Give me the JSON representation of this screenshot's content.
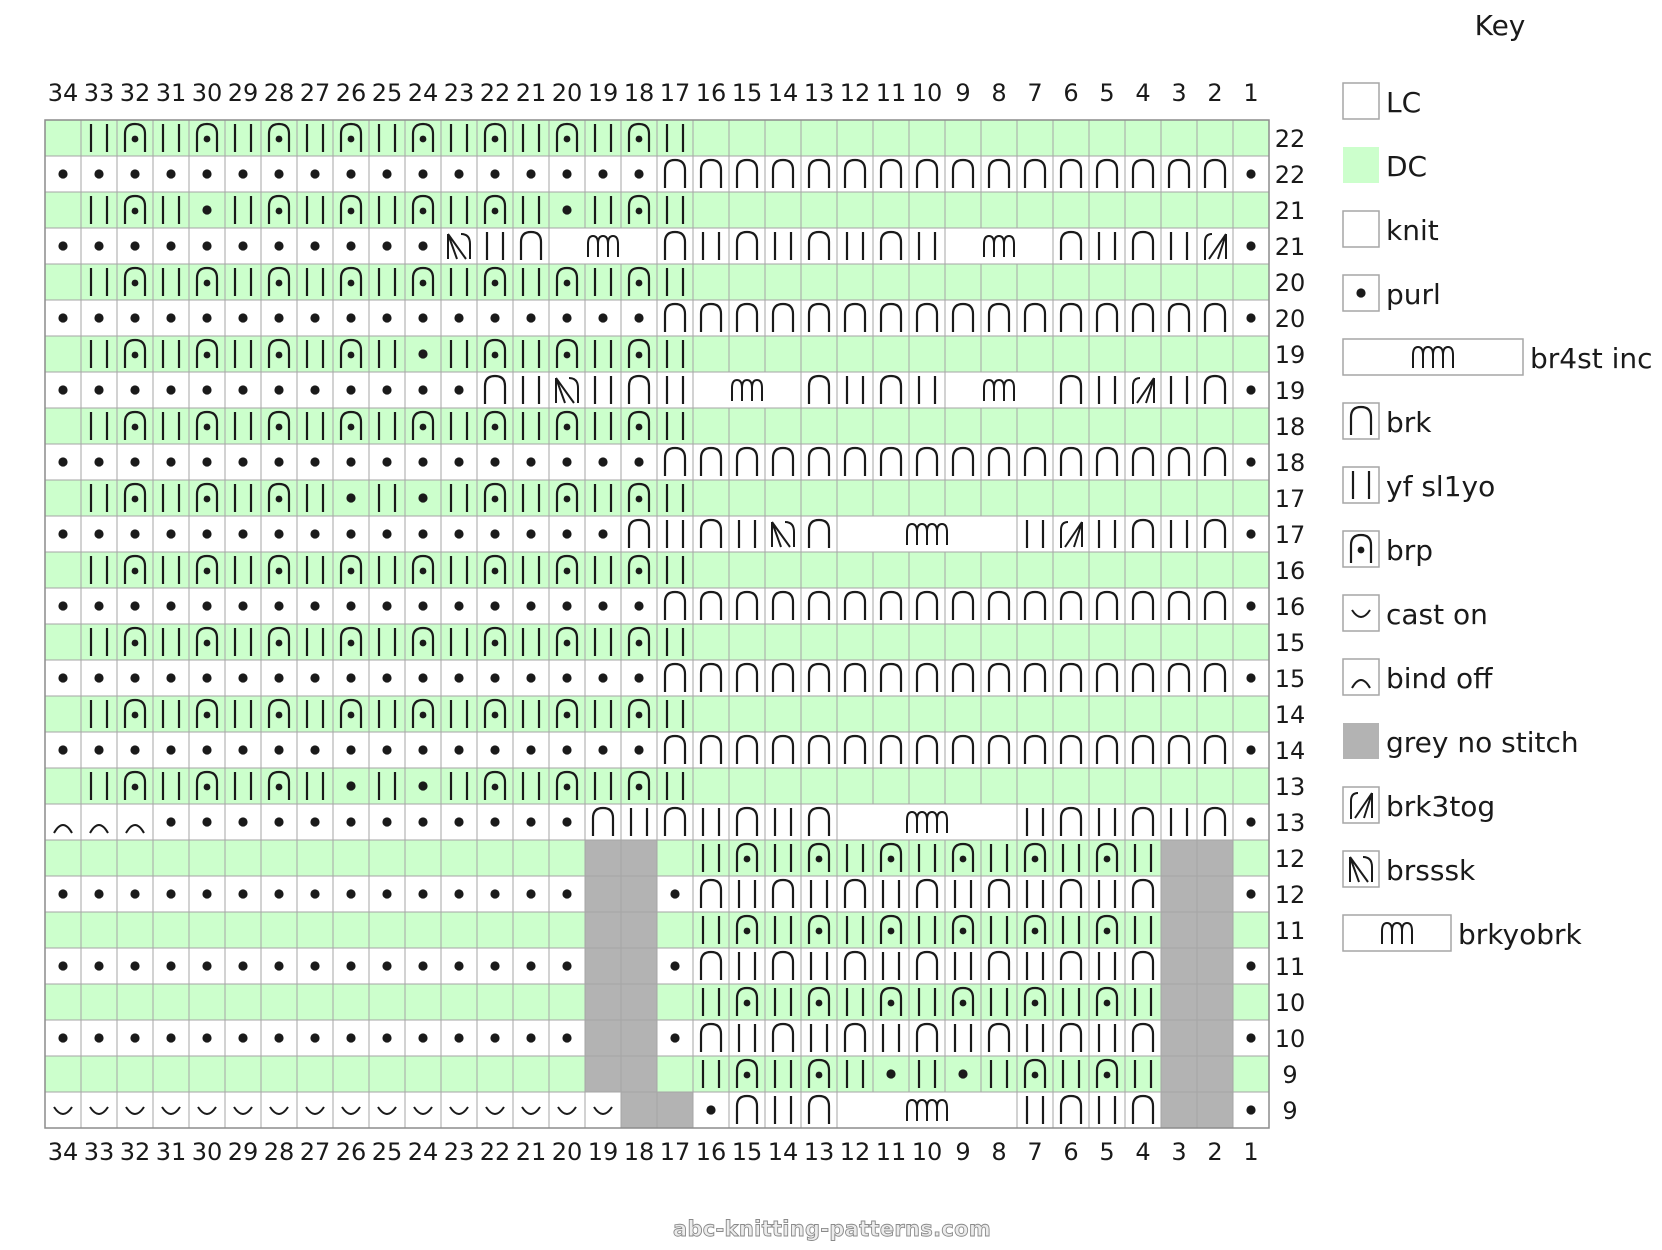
{
  "key_title": "Key",
  "watermark": "abc-knitting-patterns.com",
  "colors": {
    "dc": "#ccffcc",
    "lc": "#ffffff",
    "grey": "#b3b3b3",
    "grid": "#a6a6a6",
    "ink": "#1a1a1a"
  },
  "stitch_numbers": [
    "34",
    "33",
    "32",
    "31",
    "30",
    "29",
    "28",
    "27",
    "26",
    "25",
    "24",
    "23",
    "22",
    "21",
    "20",
    "19",
    "18",
    "17",
    "16",
    "15",
    "14",
    "13",
    "12",
    "11",
    "10",
    "9",
    "8",
    "7",
    "6",
    "5",
    "4",
    "3",
    "2",
    "1"
  ],
  "key": [
    {
      "id": "lc",
      "label": "LC"
    },
    {
      "id": "dc",
      "label": "DC"
    },
    {
      "id": "knit",
      "label": "knit"
    },
    {
      "id": "purl",
      "label": "purl"
    },
    {
      "id": "br4st",
      "label": "br4st inc"
    },
    {
      "id": "brk",
      "label": "brk"
    },
    {
      "id": "yf",
      "label": "yf sl1yo"
    },
    {
      "id": "brp",
      "label": "brp"
    },
    {
      "id": "caston",
      "label": "cast on"
    },
    {
      "id": "bindoff",
      "label": "bind off"
    },
    {
      "id": "grey",
      "label": "grey no stitch"
    },
    {
      "id": "brk3tog",
      "label": "brk3tog"
    },
    {
      "id": "brsssk",
      "label": "brsssk"
    },
    {
      "id": "brkyobrk",
      "label": "brkyobrk"
    }
  ],
  "chart_data": {
    "type": "knitting-chart",
    "columns": 34,
    "legend": {
      "C": "LC (white background)",
      "D": "DC (green background)",
      "k": "knit",
      "p": "purl",
      "K": "brk",
      "Y": "yf sl1yo",
      "P": "brp",
      "g": "grey no stitch",
      "u": "cast on",
      "b": "bind off",
      "T": "brk3tog",
      "S": "brsssk",
      "B4": "br4st inc (spans 5 cells)",
      "B2": "brkyobrk (spans 3 cells)"
    },
    "rows": [
      {
        "label": "22",
        "bg": "D",
        "cells": "D*16,Y,P,Y,P,Y,P,Y,P,Y,P,Y,P,Y,P,Y,P,Y,D"
      },
      {
        "label": "22",
        "bg": "C",
        "cells": "p,K*16,p*16,p"
      },
      {
        "label": "21",
        "bg": "D",
        "cells": "D*16,Y,P,Y,p,Y,P,Y,P,Y,P,Y,P,Y,p,Y,P,Y,D"
      },
      {
        "label": "21",
        "bg": "C",
        "cells": "p,T,Y,K,Y,K,B2,Y,K,Y,K,Y,K,Y,K,B2,K,Y,S,p*16"
      },
      {
        "label": "20",
        "bg": "D",
        "cells": "D*16,Y,P,Y,P,Y,P,Y,P,Y,P,Y,P,Y,P,Y,P,Y,D"
      },
      {
        "label": "20",
        "bg": "C",
        "cells": "p,K*16,p*16,p"
      },
      {
        "label": "19",
        "bg": "D",
        "cells": "D*16,Y,P,Y,P,Y,P,Y,p,Y,P,Y,P,Y,P,Y,P,Y,D"
      },
      {
        "label": "19",
        "bg": "C",
        "cells": "p,K,Y,T,Y,K,B2,Y,K,Y,K,B2,Y,K,Y,S,Y,K,p*16"
      },
      {
        "label": "18",
        "bg": "D",
        "cells": "D*16,Y,P,Y,P,Y,P,Y,P,Y,P,Y,P,Y,P,Y,P,Y,D"
      },
      {
        "label": "18",
        "bg": "C",
        "cells": "p,K*16,p*16,p"
      },
      {
        "label": "17",
        "bg": "D",
        "cells": "D*16,Y,P,Y,P,Y,P,Y,p,Y,p,Y,P,Y,P,Y,P,Y,D"
      },
      {
        "label": "17",
        "bg": "C",
        "cells": "p,K,Y,K,Y,T,Y,B4,K,S,Y,K,Y,K,p*16"
      },
      {
        "label": "16",
        "bg": "D",
        "cells": "D*16,Y,P,Y,P,Y,P,Y,P,Y,P,Y,P,Y,P,Y,P,Y,D"
      },
      {
        "label": "16",
        "bg": "C",
        "cells": "p,K*16,p*16,p"
      },
      {
        "label": "15",
        "bg": "D",
        "cells": "D*16,Y,P,Y,P,Y,P,Y,P,Y,P,Y,P,Y,P,Y,P,Y,D"
      },
      {
        "label": "15",
        "bg": "C",
        "cells": "p,K*16,p*16,p"
      },
      {
        "label": "14",
        "bg": "D",
        "cells": "D*16,Y,P,Y,P,Y,P,Y,P,Y,P,Y,P,Y,P,Y,P,Y,D"
      },
      {
        "label": "14",
        "bg": "C",
        "cells": "p,K*16,p*16,p"
      },
      {
        "label": "13",
        "bg": "D",
        "cells": "D*16,Y,P,Y,P,Y,P,Y,p,Y,p,Y,P,Y,P,Y,P,Y,D*29,u,u,u,u,D*2"
      },
      {
        "label": "13",
        "bg": "C",
        "cells": "p,K,Y,K,Y,K,Y,B4,K,Y,K,Y,K,Y,K,p*12,b,b,b,b,p,p"
      },
      {
        "label": "12",
        "bg": "D",
        "cells": "D,g,g,Y,P,Y,P,Y,P,Y,P,Y,P,Y,P,Y,D,g,g,D*16"
      },
      {
        "label": "12",
        "bg": "C",
        "cells": "p,g,g,K,Y,K,Y,K,Y,K,Y,K,Y,K,Y,K,p,g,g,p*16"
      },
      {
        "label": "11",
        "bg": "D",
        "cells": "D,g,g,Y,P,Y,P,Y,P,Y,P,Y,P,Y,P,Y,D,g,g,D*16"
      },
      {
        "label": "11",
        "bg": "C",
        "cells": "p,g,g,K,Y,K,Y,K,Y,K,Y,K,Y,K,Y,K,p,g,g,p*16"
      },
      {
        "label": "10",
        "bg": "D",
        "cells": "D,g,g,Y,P,Y,P,Y,P,Y,P,Y,P,Y,P,Y,D,g,g,D*16"
      },
      {
        "label": "10",
        "bg": "C",
        "cells": "p,g,g,K,Y,K,Y,K,Y,K,Y,K,Y,K,Y,K,p,g,g,p*16"
      },
      {
        "label": "9",
        "bg": "D",
        "cells": "D,g,g,Y,P,Y,P,Y,p,Y,p,Y,P,Y,P,Y,D,g,g,D*16"
      },
      {
        "label": "9",
        "bg": "C",
        "cells": "p,g,g,K,Y,K,Y,B4,K,Y,K,p,g,g,u*16"
      }
    ]
  }
}
